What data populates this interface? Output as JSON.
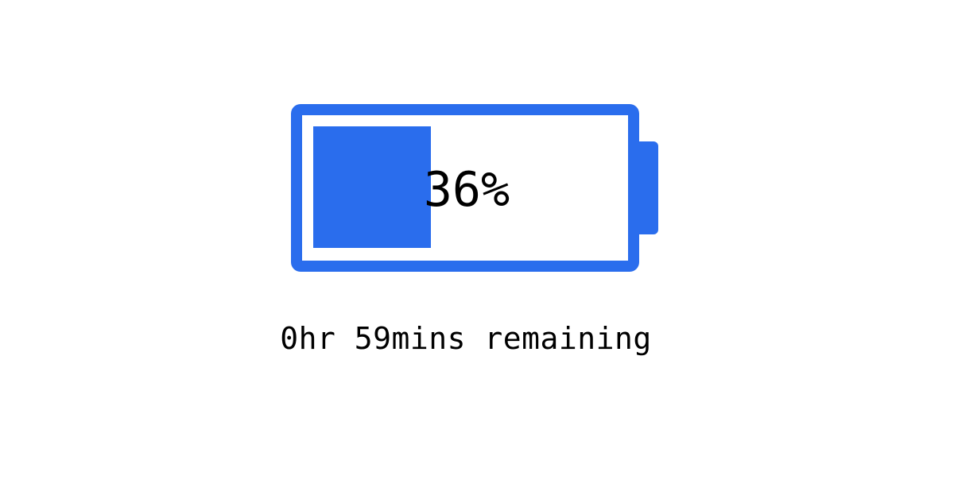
{
  "battery": {
    "level": 0.36,
    "percent_label": "36%",
    "color": "#2a6ded"
  },
  "status": {
    "remaining_label": "0hr 59mins remaining"
  }
}
